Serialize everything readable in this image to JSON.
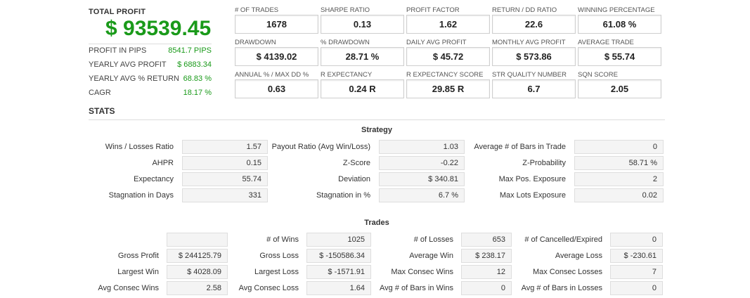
{
  "summary": {
    "total_profit_label": "TOTAL PROFIT",
    "total_profit_value": "$ 93539.45",
    "rows": [
      {
        "label": "PROFIT IN PIPS",
        "value": "8541.7 PIPS"
      },
      {
        "label": "YEARLY AVG PROFIT",
        "value": "$ 6883.34"
      },
      {
        "label": "YEARLY AVG % RETURN",
        "value": "68.83 %"
      },
      {
        "label": "CAGR",
        "value": "18.17 %"
      }
    ]
  },
  "metrics": [
    {
      "label": "# OF TRADES",
      "value": "1678"
    },
    {
      "label": "SHARPE RATIO",
      "value": "0.13"
    },
    {
      "label": "PROFIT FACTOR",
      "value": "1.62"
    },
    {
      "label": "RETURN / DD RATIO",
      "value": "22.6"
    },
    {
      "label": "WINNING PERCENTAGE",
      "value": "61.08 %"
    },
    {
      "label": "DRAWDOWN",
      "value": "$ 4139.02"
    },
    {
      "label": "% DRAWDOWN",
      "value": "28.71 %"
    },
    {
      "label": "DAILY AVG PROFIT",
      "value": "$ 45.72"
    },
    {
      "label": "MONTHLY AVG PROFIT",
      "value": "$ 573.86"
    },
    {
      "label": "AVERAGE TRADE",
      "value": "$ 55.74"
    },
    {
      "label": "ANNUAL % / MAX DD %",
      "value": "0.63"
    },
    {
      "label": "R EXPECTANCY",
      "value": "0.24 R"
    },
    {
      "label": "R EXPECTANCY SCORE",
      "value": "29.85 R"
    },
    {
      "label": "STR QUALITY NUMBER",
      "value": "6.7"
    },
    {
      "label": "SQN SCORE",
      "value": "2.05"
    }
  ],
  "stats_title": "STATS",
  "strategy": {
    "title": "Strategy",
    "rows": [
      [
        {
          "label": "Wins / Losses Ratio",
          "value": "1.57"
        },
        {
          "label": "Payout Ratio (Avg Win/Loss)",
          "value": "1.03"
        },
        {
          "label": "Average # of Bars in Trade",
          "value": "0"
        }
      ],
      [
        {
          "label": "AHPR",
          "value": "0.15"
        },
        {
          "label": "Z-Score",
          "value": "-0.22"
        },
        {
          "label": "Z-Probability",
          "value": "58.71 %"
        }
      ],
      [
        {
          "label": "Expectancy",
          "value": "55.74"
        },
        {
          "label": "Deviation",
          "value": "$ 340.81"
        },
        {
          "label": "Max Pos. Exposure",
          "value": "2"
        }
      ],
      [
        {
          "label": "Stagnation in Days",
          "value": "331"
        },
        {
          "label": "Stagnation in %",
          "value": "6.7 %"
        },
        {
          "label": "Max Lots Exposure",
          "value": "0.02"
        }
      ]
    ]
  },
  "trades": {
    "title": "Trades",
    "rows": [
      [
        {
          "label": "",
          "value": ""
        },
        {
          "label": "# of Wins",
          "value": "1025"
        },
        {
          "label": "# of Losses",
          "value": "653"
        },
        {
          "label": "# of Cancelled/Expired",
          "value": "0"
        }
      ],
      [
        {
          "label": "Gross Profit",
          "value": "$ 244125.79"
        },
        {
          "label": "Gross Loss",
          "value": "$ -150586.34"
        },
        {
          "label": "Average Win",
          "value": "$ 238.17"
        },
        {
          "label": "Average Loss",
          "value": "$ -230.61"
        }
      ],
      [
        {
          "label": "Largest Win",
          "value": "$ 4028.09"
        },
        {
          "label": "Largest Loss",
          "value": "$ -1571.91"
        },
        {
          "label": "Max Consec Wins",
          "value": "12"
        },
        {
          "label": "Max Consec Losses",
          "value": "7"
        }
      ],
      [
        {
          "label": "Avg Consec Wins",
          "value": "2.58"
        },
        {
          "label": "Avg Consec Loss",
          "value": "1.64"
        },
        {
          "label": "Avg # of Bars in Wins",
          "value": "0"
        },
        {
          "label": "Avg # of Bars in Losses",
          "value": "0"
        }
      ]
    ]
  }
}
